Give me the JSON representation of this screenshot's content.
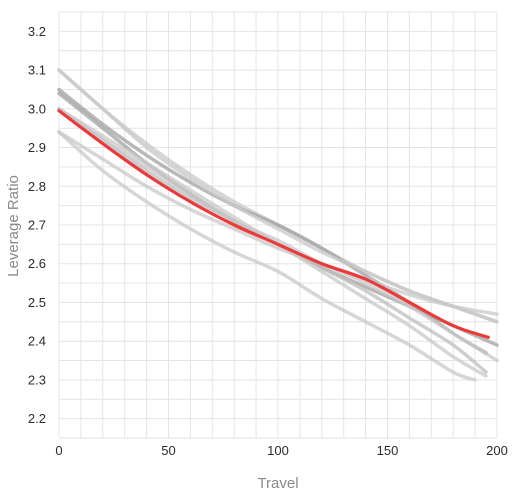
{
  "chart_data": {
    "type": "line",
    "title": "",
    "xlabel": "Travel",
    "ylabel": "Leverage Ratio",
    "xlim": [
      0,
      200
    ],
    "ylim": [
      2.15,
      3.25
    ],
    "x_ticks": [
      0,
      50,
      100,
      150,
      200
    ],
    "y_ticks": [
      2.2,
      2.3,
      2.4,
      2.5,
      2.6,
      2.7,
      2.8,
      2.9,
      3.0,
      3.1,
      3.2
    ],
    "x_tick_labels": [
      "0",
      "50",
      "100",
      "150",
      "200"
    ],
    "y_tick_labels": [
      "2.2",
      "2.3",
      "2.4",
      "2.5",
      "2.6",
      "2.7",
      "2.8",
      "2.9",
      "3.0",
      "3.1",
      "3.2"
    ],
    "grid": true,
    "background_series": [
      {
        "color": "#c8c8c8",
        "opacity": 0.75,
        "x": [
          0,
          20,
          40,
          60,
          80,
          100,
          120,
          140,
          160,
          180,
          200
        ],
        "y": [
          3.1,
          3.0,
          2.91,
          2.83,
          2.76,
          2.7,
          2.64,
          2.58,
          2.53,
          2.49,
          2.45
        ]
      },
      {
        "color": "#a0a0a0",
        "opacity": 0.75,
        "x": [
          0,
          20,
          40,
          60,
          80,
          100,
          120,
          140,
          160,
          180,
          195
        ],
        "y": [
          3.05,
          2.96,
          2.88,
          2.81,
          2.75,
          2.7,
          2.64,
          2.57,
          2.5,
          2.42,
          2.37
        ]
      },
      {
        "color": "#a0a0a0",
        "opacity": 0.75,
        "x": [
          0,
          20,
          40,
          60,
          80,
          100,
          120,
          140,
          160,
          180,
          200
        ],
        "y": [
          3.04,
          2.95,
          2.86,
          2.78,
          2.71,
          2.65,
          2.59,
          2.54,
          2.49,
          2.44,
          2.39
        ]
      },
      {
        "color": "#bdbdbd",
        "opacity": 0.75,
        "x": [
          0,
          20,
          40,
          60,
          80,
          100,
          120,
          140,
          160,
          180,
          195
        ],
        "y": [
          3.0,
          2.92,
          2.84,
          2.77,
          2.71,
          2.65,
          2.59,
          2.53,
          2.46,
          2.39,
          2.32
        ]
      },
      {
        "color": "#c8c8c8",
        "opacity": 0.75,
        "x": [
          0,
          20,
          40,
          60,
          80,
          100,
          120,
          140,
          160,
          180,
          195
        ],
        "y": [
          3.0,
          2.93,
          2.86,
          2.79,
          2.72,
          2.65,
          2.58,
          2.51,
          2.44,
          2.36,
          2.31
        ]
      },
      {
        "color": "#c8c8c8",
        "opacity": 0.75,
        "x": [
          0,
          20,
          40,
          60,
          80,
          100,
          120,
          140,
          160,
          180,
          200
        ],
        "y": [
          2.94,
          2.87,
          2.8,
          2.74,
          2.69,
          2.64,
          2.6,
          2.56,
          2.52,
          2.49,
          2.47
        ]
      },
      {
        "color": "#c8c8c8",
        "opacity": 0.75,
        "x": [
          0,
          20,
          40,
          60,
          80,
          100,
          120,
          140,
          160,
          180,
          200
        ],
        "y": [
          3.0,
          2.92,
          2.85,
          2.78,
          2.71,
          2.66,
          2.6,
          2.55,
          2.49,
          2.42,
          2.35
        ]
      },
      {
        "color": "#c8c8c8",
        "opacity": 0.75,
        "x": [
          0,
          20,
          40,
          60,
          80,
          100,
          120,
          140,
          160,
          180,
          200
        ],
        "y": [
          3.1,
          3.0,
          2.9,
          2.82,
          2.75,
          2.69,
          2.63,
          2.58,
          2.53,
          2.49,
          2.45
        ]
      },
      {
        "color": "#c8c8c8",
        "opacity": 0.75,
        "x": [
          0,
          20,
          40,
          60,
          80,
          100,
          120,
          140,
          160,
          180,
          190
        ],
        "y": [
          2.94,
          2.84,
          2.76,
          2.69,
          2.63,
          2.58,
          2.51,
          2.45,
          2.39,
          2.32,
          2.3
        ]
      }
    ],
    "highlight_series": {
      "color": "#ec3a3a",
      "x": [
        0,
        20,
        40,
        60,
        80,
        100,
        120,
        140,
        160,
        180,
        196
      ],
      "y": [
        2.995,
        2.91,
        2.83,
        2.76,
        2.7,
        2.65,
        2.6,
        2.56,
        2.5,
        2.44,
        2.41
      ]
    }
  }
}
